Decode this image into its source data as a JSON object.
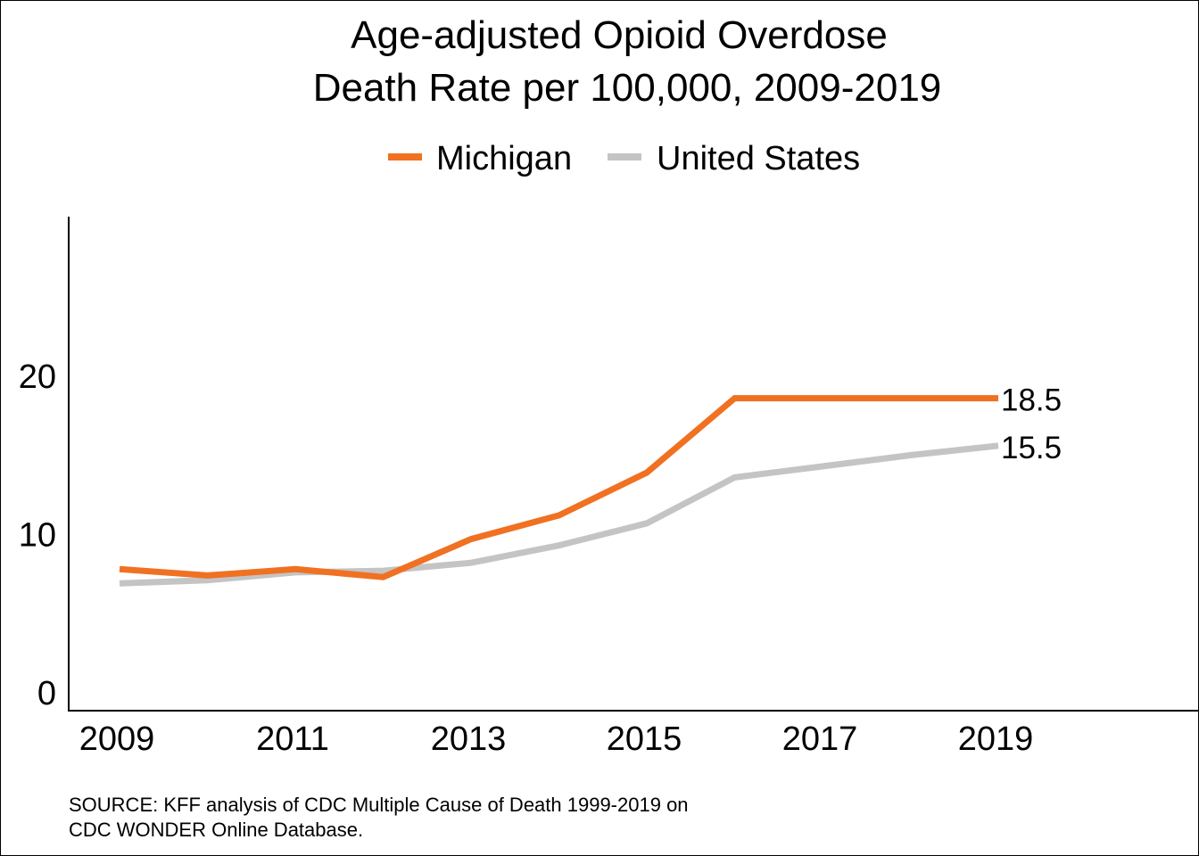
{
  "chart_data": {
    "type": "line",
    "title_lines": [
      "Age-adjusted Opioid Overdose",
      "Death Rate per 100,000, 2009-2019"
    ],
    "x": [
      2009,
      2010,
      2011,
      2012,
      2013,
      2014,
      2015,
      2016,
      2017,
      2018,
      2019
    ],
    "x_tick_labels": [
      "2009",
      "2011",
      "2013",
      "2015",
      "2017",
      "2019"
    ],
    "x_tick_values": [
      2009,
      2011,
      2013,
      2015,
      2017,
      2019
    ],
    "xlim": [
      2009,
      2021
    ],
    "y_tick_labels": [
      "0",
      "10",
      "20"
    ],
    "y_tick_values": [
      0,
      10,
      20
    ],
    "ylim": [
      0,
      30
    ],
    "grid": false,
    "legend_position": "top-center",
    "series": [
      {
        "name": "Michigan",
        "color": "#F07122",
        "values": [
          7.7,
          7.3,
          7.7,
          7.2,
          9.6,
          11.1,
          13.8,
          18.5,
          18.5,
          18.5,
          18.5
        ],
        "end_label": "18.5"
      },
      {
        "name": "United States",
        "color": "#C4C4C4",
        "values": [
          6.8,
          7.0,
          7.5,
          7.6,
          8.1,
          9.2,
          10.6,
          13.5,
          14.2,
          14.9,
          15.5
        ],
        "end_label": "15.5"
      }
    ]
  },
  "source": {
    "line1": "SOURCE: KFF analysis of CDC Multiple Cause of Death 1999-2019 on",
    "line2": "CDC WONDER Online Database."
  }
}
